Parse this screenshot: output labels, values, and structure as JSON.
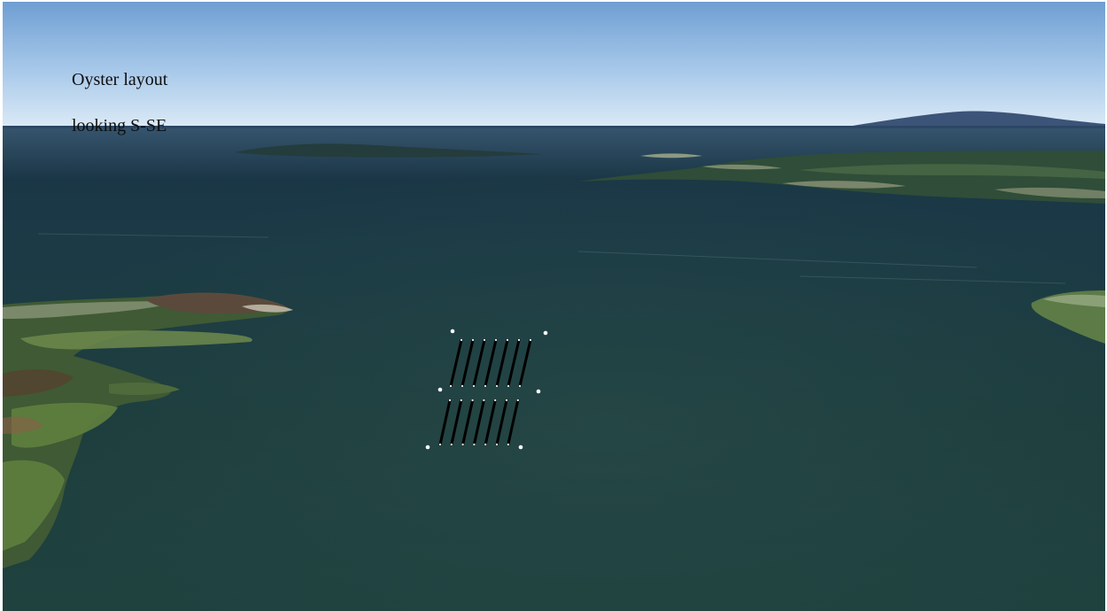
{
  "caption": {
    "line1": "Oyster layout",
    "line2": "looking S-SE"
  },
  "colors": {
    "sky_top": "#6f9fd3",
    "sky_horizon": "#dcebf6",
    "water_far": "#1b3545",
    "water_near": "#1f4040",
    "land": "#4f6b3a",
    "mountain": "#3a5275",
    "line_marker": "#000000",
    "point_marker": "#ffffff"
  },
  "layout_markers": {
    "upper_block_lines": 7,
    "lower_block_lines": 7,
    "corner_points": 6
  }
}
